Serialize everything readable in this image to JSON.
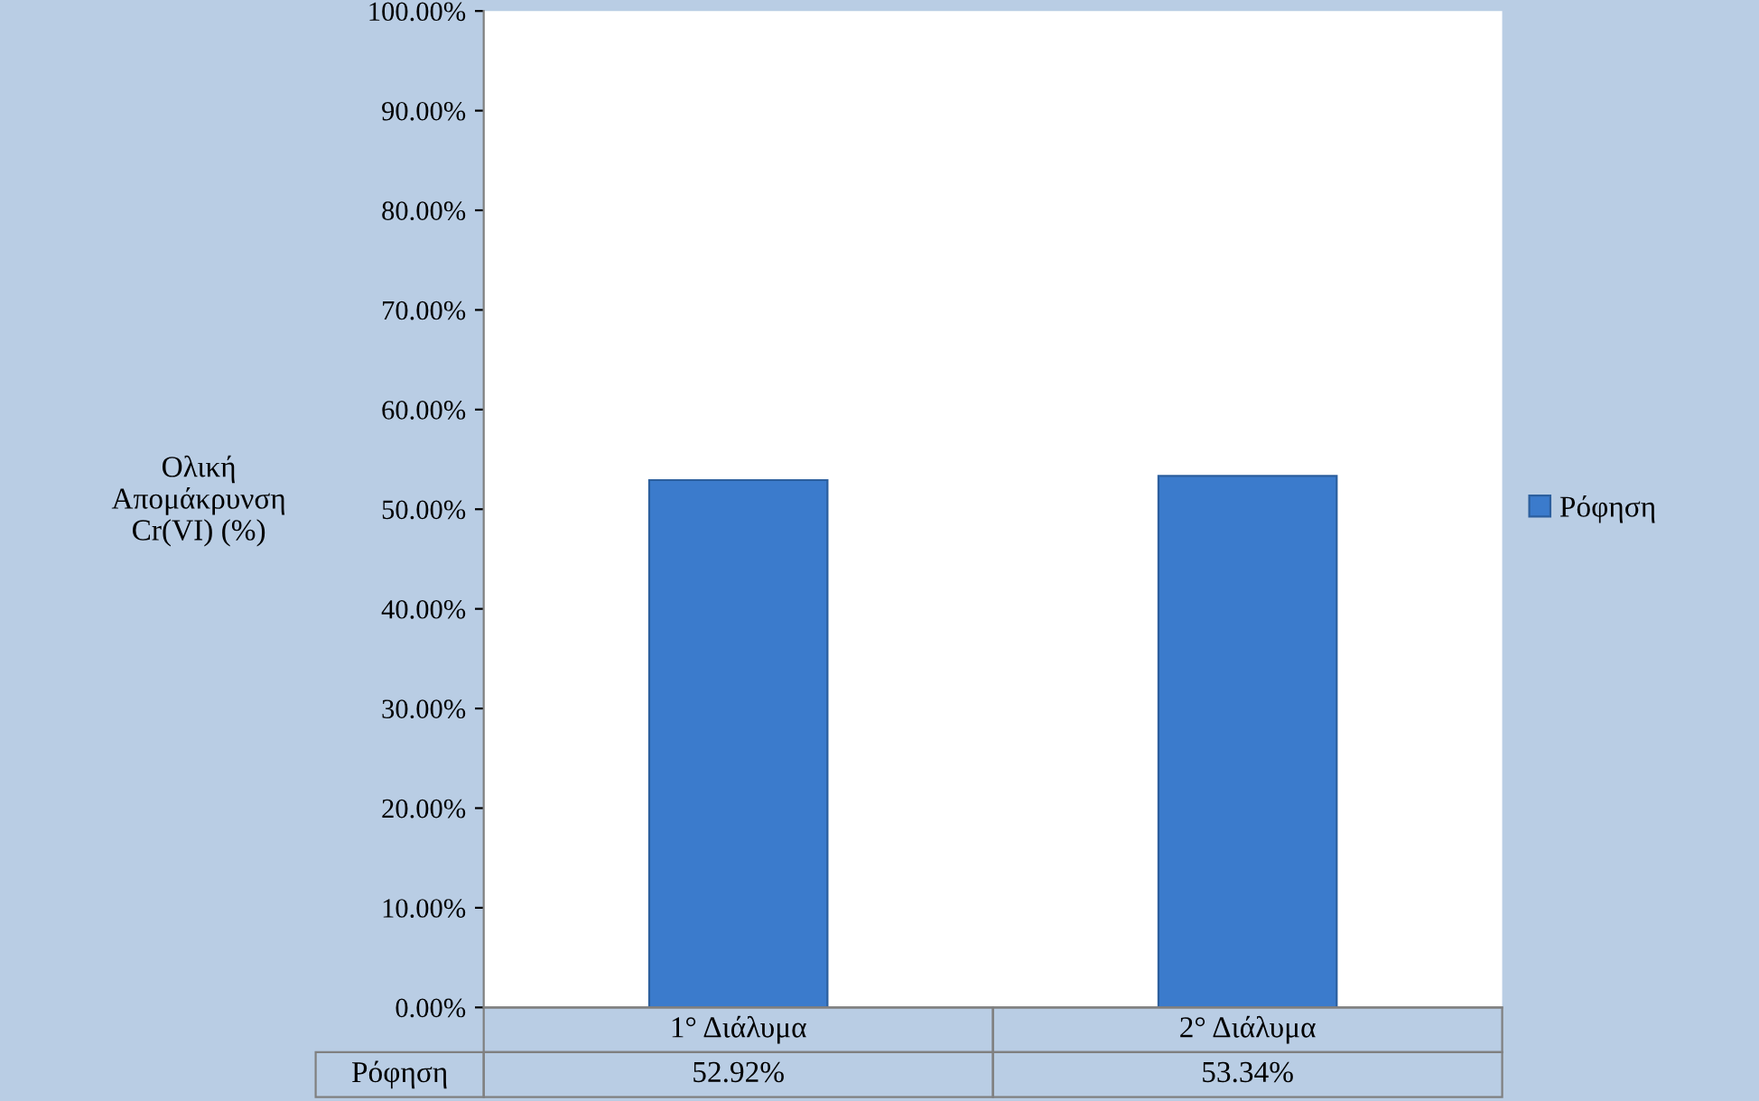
{
  "chart_data": {
    "type": "bar",
    "ylabel": "Ολική\nΑπομάκρυνση\nCr(VI) (%)",
    "categories": [
      "1° Διάλυμα",
      "2° Διάλυμα"
    ],
    "series": [
      {
        "name": "Ρόφηση",
        "color": "#3b7bcc",
        "values": [
          52.92,
          53.34
        ],
        "value_labels": [
          "52.92%",
          "53.34%"
        ]
      }
    ],
    "ylim": [
      0,
      100
    ],
    "yticks": [
      {
        "value": 0,
        "label": "0.00%"
      },
      {
        "value": 10,
        "label": "10.00%"
      },
      {
        "value": 20,
        "label": "20.00%"
      },
      {
        "value": 30,
        "label": "30.00%"
      },
      {
        "value": 40,
        "label": "40.00%"
      },
      {
        "value": 50,
        "label": "50.00%"
      },
      {
        "value": 60,
        "label": "60.00%"
      },
      {
        "value": 70,
        "label": "70.00%"
      },
      {
        "value": 80,
        "label": "80.00%"
      },
      {
        "value": 90,
        "label": "90.00%"
      },
      {
        "value": 100,
        "label": "100.00%"
      }
    ],
    "grid": false,
    "legend": "right"
  }
}
